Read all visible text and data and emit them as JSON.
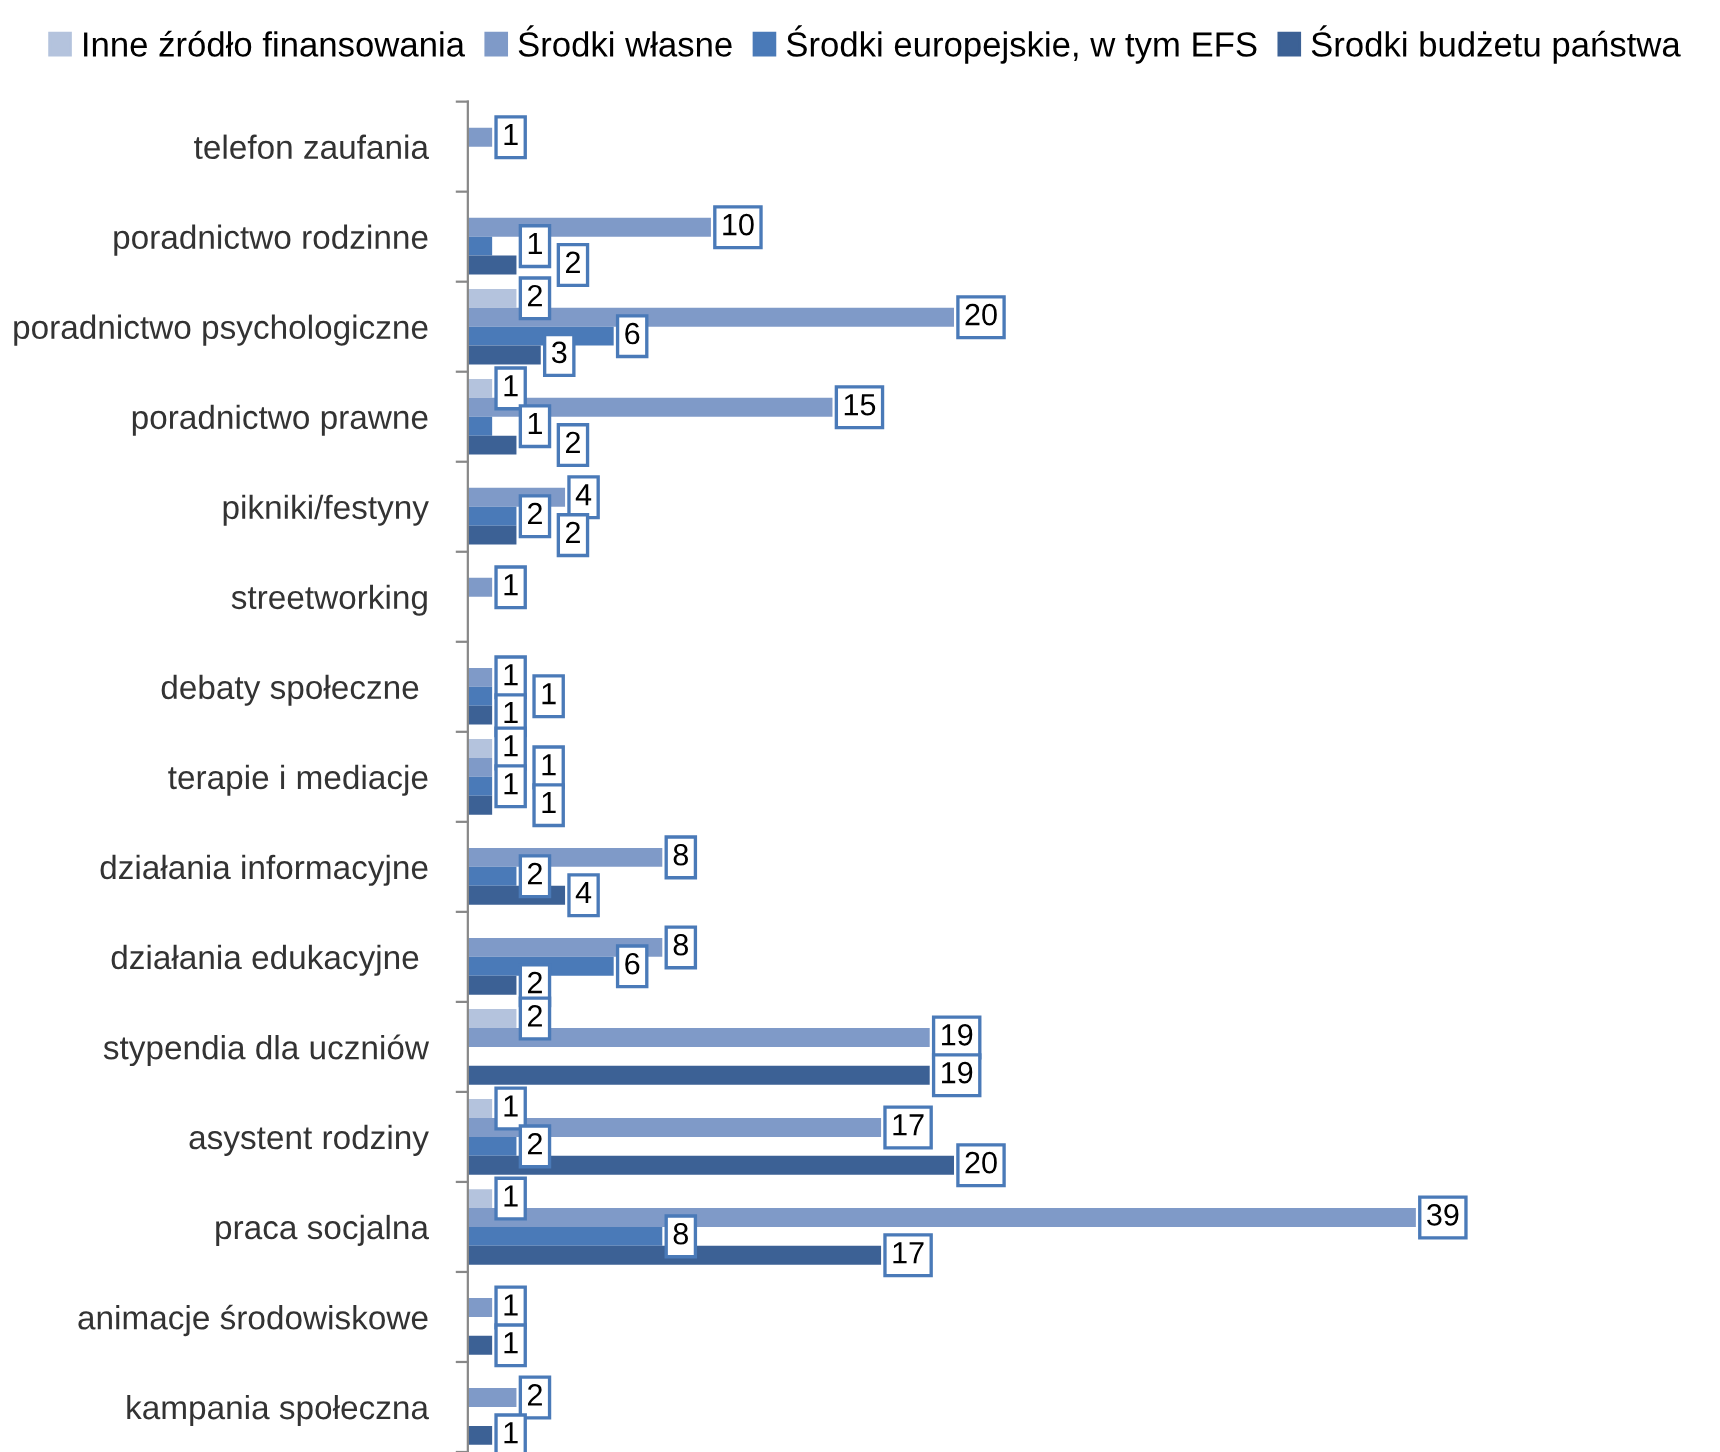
{
  "chart_data": {
    "type": "bar",
    "orientation": "horizontal",
    "data_labels": true,
    "legend": "top",
    "grid": false,
    "categories": [
      "telefon zaufania",
      "poradnictwo rodzinne",
      "poradnictwo psychologiczne",
      "poradnictwo prawne",
      "pikniki/festyny",
      "streetworking",
      "debaty społeczne ",
      "terapie i mediacje",
      "działania informacyjne",
      "działania edukacyjne ",
      "stypendia dla uczniów",
      "asystent rodziny",
      "praca socjalna",
      "animacje środowiskowe",
      "kampania społeczna"
    ],
    "series": [
      {
        "name": "Inne źródło finansowania",
        "color": "#b4c3dd",
        "values": [
          null,
          null,
          2,
          1,
          null,
          null,
          null,
          1,
          null,
          null,
          2,
          1,
          1,
          null,
          null
        ]
      },
      {
        "name": "Środki własne",
        "color": "#7f9ac8",
        "values": [
          1,
          10,
          20,
          15,
          4,
          1,
          1,
          1,
          8,
          8,
          19,
          17,
          39,
          1,
          2
        ]
      },
      {
        "name": "Środki europejskie, w tym EFS",
        "color": "#4a7ab8",
        "values": [
          null,
          1,
          6,
          1,
          2,
          null,
          1,
          1,
          2,
          6,
          null,
          2,
          8,
          null,
          null
        ]
      },
      {
        "name": "Środki budżetu państwa",
        "color": "#3c6195",
        "values": [
          null,
          2,
          3,
          2,
          2,
          null,
          1,
          1,
          4,
          2,
          19,
          20,
          17,
          1,
          1
        ]
      }
    ]
  }
}
